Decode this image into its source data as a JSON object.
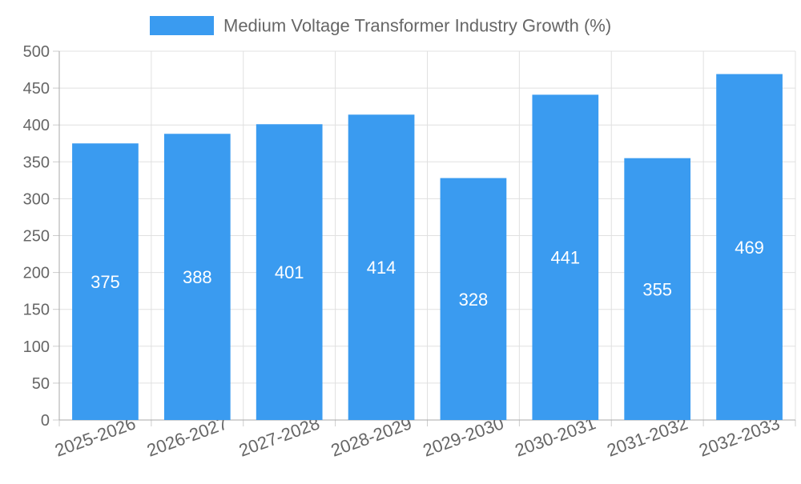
{
  "chart_data": {
    "type": "bar",
    "title": "",
    "legend": {
      "label": "Medium Voltage Transformer Industry Growth (%)",
      "placement": "top-center"
    },
    "categories": [
      "2025-2026",
      "2026-2027",
      "2027-2028",
      "2028-2029",
      "2029-2030",
      "2030-2031",
      "2031-2032",
      "2032-2033"
    ],
    "series": [
      {
        "name": "Medium Voltage Transformer Industry Growth (%)",
        "values": [
          375,
          388,
          401,
          414,
          328,
          441,
          355,
          469
        ],
        "color": "#3a9bf0"
      }
    ],
    "xlabel": "",
    "ylabel": "",
    "ylim": [
      0,
      500
    ],
    "yticks": [
      0,
      50,
      100,
      150,
      200,
      250,
      300,
      350,
      400,
      450,
      500
    ],
    "grid": true,
    "data_label_color": "#ffffff",
    "axis_text_color": "#666666",
    "grid_color": "#e0e0e0"
  }
}
